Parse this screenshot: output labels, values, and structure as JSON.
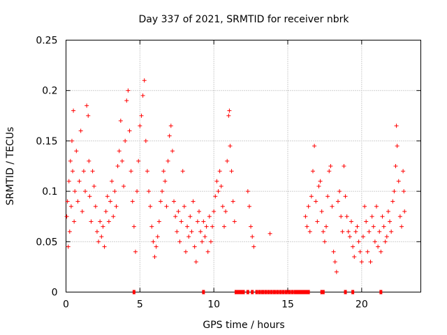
{
  "chart_data": {
    "type": "scatter",
    "title": "Day 337 of 2021, SRMTID for receiver nbrk",
    "xlabel": "GPS time / hours",
    "ylabel": "SRMTID / TECUs",
    "xlim": [
      0,
      24
    ],
    "ylim": [
      0,
      0.25
    ],
    "xticks": [
      0,
      5,
      10,
      15,
      20
    ],
    "yticks": [
      0,
      0.05,
      0.1,
      0.15,
      0.2,
      0.25
    ],
    "ytick_labels": [
      "0",
      "0.05",
      "0.1",
      "0.15",
      "0.2",
      "0.25"
    ],
    "grid": true,
    "marker": "+",
    "color": "#ff0000",
    "series": [
      {
        "name": "SRMTID",
        "points": [
          [
            0.05,
            0.075
          ],
          [
            0.1,
            0.09
          ],
          [
            0.15,
            0.045
          ],
          [
            0.2,
            0.11
          ],
          [
            0.25,
            0.06
          ],
          [
            0.3,
            0.13
          ],
          [
            0.35,
            0.085
          ],
          [
            0.4,
            0.15
          ],
          [
            0.45,
            0.12
          ],
          [
            0.5,
            0.18
          ],
          [
            0.55,
            0.07
          ],
          [
            0.6,
            0.1
          ],
          [
            0.7,
            0.14
          ],
          [
            0.8,
            0.09
          ],
          [
            0.9,
            0.11
          ],
          [
            1.0,
            0.16
          ],
          [
            1.1,
            0.08
          ],
          [
            1.2,
            0.12
          ],
          [
            1.3,
            0.1
          ],
          [
            1.4,
            0.185
          ],
          [
            1.5,
            0.175
          ],
          [
            1.55,
            0.13
          ],
          [
            1.6,
            0.095
          ],
          [
            1.7,
            0.07
          ],
          [
            1.8,
            0.12
          ],
          [
            1.9,
            0.105
          ],
          [
            2.0,
            0.085
          ],
          [
            2.1,
            0.06
          ],
          [
            2.2,
            0.05
          ],
          [
            2.3,
            0.07
          ],
          [
            2.4,
            0.055
          ],
          [
            2.5,
            0.065
          ],
          [
            2.6,
            0.045
          ],
          [
            2.7,
            0.08
          ],
          [
            2.8,
            0.095
          ],
          [
            2.9,
            0.07
          ],
          [
            3.0,
            0.09
          ],
          [
            3.1,
            0.11
          ],
          [
            3.2,
            0.075
          ],
          [
            3.3,
            0.1
          ],
          [
            3.4,
            0.085
          ],
          [
            3.5,
            0.125
          ],
          [
            3.6,
            0.14
          ],
          [
            3.7,
            0.17
          ],
          [
            3.8,
            0.13
          ],
          [
            3.9,
            0.105
          ],
          [
            4.0,
            0.15
          ],
          [
            4.1,
            0.19
          ],
          [
            4.2,
            0.2
          ],
          [
            4.3,
            0.16
          ],
          [
            4.4,
            0.12
          ],
          [
            4.5,
            0.09
          ],
          [
            4.6,
            0.065
          ],
          [
            4.7,
            0.04
          ],
          [
            4.8,
            0.1
          ],
          [
            4.9,
            0.13
          ],
          [
            5.0,
            0.165
          ],
          [
            5.1,
            0.175
          ],
          [
            5.2,
            0.195
          ],
          [
            5.3,
            0.21
          ],
          [
            5.4,
            0.15
          ],
          [
            5.5,
            0.12
          ],
          [
            5.6,
            0.1
          ],
          [
            5.7,
            0.085
          ],
          [
            5.8,
            0.065
          ],
          [
            5.9,
            0.05
          ],
          [
            6.0,
            0.035
          ],
          [
            6.1,
            0.045
          ],
          [
            6.2,
            0.055
          ],
          [
            6.3,
            0.07
          ],
          [
            6.4,
            0.09
          ],
          [
            6.5,
            0.1
          ],
          [
            6.6,
            0.12
          ],
          [
            6.7,
            0.11
          ],
          [
            6.8,
            0.085
          ],
          [
            6.9,
            0.13
          ],
          [
            7.0,
            0.155
          ],
          [
            7.1,
            0.165
          ],
          [
            7.2,
            0.14
          ],
          [
            7.3,
            0.09
          ],
          [
            7.4,
            0.075
          ],
          [
            7.5,
            0.06
          ],
          [
            7.6,
            0.08
          ],
          [
            7.7,
            0.05
          ],
          [
            7.8,
            0.07
          ],
          [
            7.9,
            0.12
          ],
          [
            8.0,
            0.085
          ],
          [
            8.1,
            0.04
          ],
          [
            8.2,
            0.065
          ],
          [
            8.3,
            0.055
          ],
          [
            8.4,
            0.075
          ],
          [
            8.5,
            0.06
          ],
          [
            8.6,
            0.09
          ],
          [
            8.7,
            0.045
          ],
          [
            8.8,
            0.03
          ],
          [
            8.9,
            0.07
          ],
          [
            9.0,
            0.08
          ],
          [
            9.1,
            0.06
          ],
          [
            9.2,
            0.05
          ],
          [
            9.3,
            0.07
          ],
          [
            9.4,
            0.055
          ],
          [
            9.5,
            0.065
          ],
          [
            9.6,
            0.04
          ],
          [
            9.7,
            0.075
          ],
          [
            9.8,
            0.05
          ],
          [
            9.9,
            0.065
          ],
          [
            10.0,
            0.08
          ],
          [
            10.1,
            0.095
          ],
          [
            10.2,
            0.11
          ],
          [
            10.3,
            0.1
          ],
          [
            10.4,
            0.12
          ],
          [
            10.5,
            0.105
          ],
          [
            10.6,
            0.085
          ],
          [
            10.7,
            0.065
          ],
          [
            10.8,
            0.08
          ],
          [
            10.9,
            0.13
          ],
          [
            11.0,
            0.175
          ],
          [
            11.05,
            0.18
          ],
          [
            11.1,
            0.145
          ],
          [
            11.2,
            0.12
          ],
          [
            11.3,
            0.09
          ],
          [
            11.4,
            0.07
          ],
          [
            12.3,
            0.1
          ],
          [
            12.4,
            0.085
          ],
          [
            12.5,
            0.065
          ],
          [
            12.6,
            0.055
          ],
          [
            12.7,
            0.045
          ],
          [
            13.8,
            0.058
          ],
          [
            16.2,
            0.075
          ],
          [
            16.3,
            0.065
          ],
          [
            16.4,
            0.085
          ],
          [
            16.5,
            0.06
          ],
          [
            16.6,
            0.095
          ],
          [
            16.7,
            0.12
          ],
          [
            16.8,
            0.145
          ],
          [
            16.9,
            0.09
          ],
          [
            17.0,
            0.07
          ],
          [
            17.1,
            0.105
          ],
          [
            17.2,
            0.11
          ],
          [
            17.3,
            0.08
          ],
          [
            17.4,
            0.06
          ],
          [
            17.5,
            0.05
          ],
          [
            17.6,
            0.065
          ],
          [
            17.7,
            0.095
          ],
          [
            17.8,
            0.12
          ],
          [
            17.9,
            0.125
          ],
          [
            18.0,
            0.085
          ],
          [
            18.1,
            0.04
          ],
          [
            18.2,
            0.03
          ],
          [
            18.3,
            0.02
          ],
          [
            18.4,
            0.09
          ],
          [
            18.5,
            0.1
          ],
          [
            18.6,
            0.075
          ],
          [
            18.7,
            0.06
          ],
          [
            18.8,
            0.125
          ],
          [
            18.9,
            0.095
          ],
          [
            19.0,
            0.075
          ],
          [
            19.1,
            0.06
          ],
          [
            19.2,
            0.055
          ],
          [
            19.3,
            0.07
          ],
          [
            19.4,
            0.045
          ],
          [
            19.5,
            0.035
          ],
          [
            19.6,
            0.06
          ],
          [
            19.7,
            0.065
          ],
          [
            19.8,
            0.05
          ],
          [
            19.9,
            0.04
          ],
          [
            20.0,
            0.03
          ],
          [
            20.1,
            0.055
          ],
          [
            20.2,
            0.085
          ],
          [
            20.3,
            0.07
          ],
          [
            20.4,
            0.04
          ],
          [
            20.5,
            0.06
          ],
          [
            20.6,
            0.03
          ],
          [
            20.7,
            0.075
          ],
          [
            20.8,
            0.065
          ],
          [
            20.9,
            0.05
          ],
          [
            21.0,
            0.085
          ],
          [
            21.1,
            0.045
          ],
          [
            21.2,
            0.06
          ],
          [
            21.3,
            0.04
          ],
          [
            21.4,
            0.075
          ],
          [
            21.5,
            0.065
          ],
          [
            21.6,
            0.05
          ],
          [
            21.7,
            0.055
          ],
          [
            21.8,
            0.08
          ],
          [
            21.9,
            0.07
          ],
          [
            22.0,
            0.06
          ],
          [
            22.1,
            0.09
          ],
          [
            22.2,
            0.1
          ],
          [
            22.3,
            0.125
          ],
          [
            22.35,
            0.165
          ],
          [
            22.4,
            0.145
          ],
          [
            22.5,
            0.11
          ],
          [
            22.6,
            0.075
          ],
          [
            22.7,
            0.065
          ],
          [
            22.8,
            0.12
          ],
          [
            22.85,
            0.1
          ],
          [
            22.9,
            0.08
          ]
        ]
      }
    ],
    "zero_markers_x": [
      4.6,
      9.3,
      11.5,
      11.6,
      11.7,
      11.8,
      11.9,
      12.0,
      12.3,
      12.6,
      12.9,
      13.1,
      13.3,
      13.5,
      13.7,
      13.9,
      14.1,
      14.3,
      14.5,
      14.7,
      14.9,
      15.1,
      15.3,
      15.5,
      15.6,
      15.7,
      15.8,
      15.9,
      16.0,
      16.1,
      16.2,
      16.3,
      16.4,
      17.3,
      17.4,
      18.9,
      19.4,
      21.3
    ]
  }
}
